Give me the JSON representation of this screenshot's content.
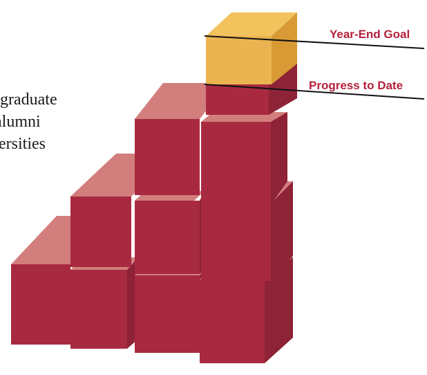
{
  "caption": {
    "line1": "graduate",
    "line2": "alumni",
    "line3": "versities"
  },
  "labels": {
    "goal": "Year-End Goal",
    "progress": "Progress to Date"
  },
  "colors": {
    "block_front": "#a82a40",
    "block_top": "#d27e7d",
    "block_side": "#8e2236",
    "goal_front": "#ebb451",
    "goal_top": "#f2c25c",
    "goal_side": "#d89a34",
    "label_text": "#b5213b",
    "line": "#111111"
  },
  "blocks": {
    "completed_count": 10,
    "partial_block": "progress fill topped by remaining goal"
  }
}
